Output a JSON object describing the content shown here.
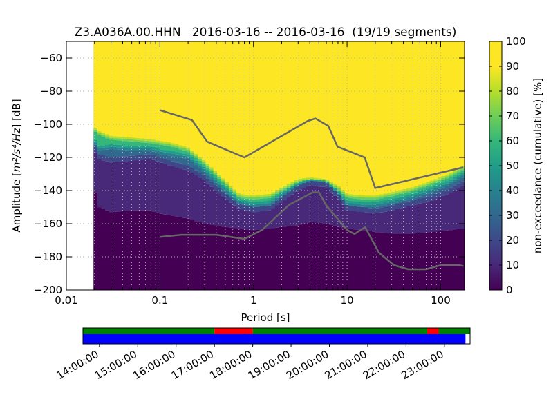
{
  "chart_data": {
    "type": "heatmap",
    "title": "Z3.A036A.00.HHN   2016-03-16 -- 2016-03-16  (19/19 segments)",
    "xlabel": "Period [s]",
    "ylabel_prefix": "Amplitude [",
    "ylabel_units": "m²/s⁴/Hz",
    "ylabel_suffix": "] [dB]",
    "x_scale": "log",
    "xlim": [
      0.01,
      180
    ],
    "ylim": [
      -200,
      -50
    ],
    "x_tick_labels": [
      "0.01",
      "0.1",
      "1",
      "10",
      "100"
    ],
    "x_tick_values": [
      0.01,
      0.1,
      1,
      10,
      100
    ],
    "y_tick_values": [
      -60,
      -80,
      -100,
      -120,
      -140,
      -160,
      -180,
      -200
    ],
    "grid": true,
    "colorbar": {
      "label": "non-exceedance (cumulative) [%]",
      "ticks": [
        0,
        10,
        20,
        30,
        40,
        50,
        60,
        70,
        80,
        90,
        100
      ],
      "range": [
        0,
        100
      ]
    },
    "data_start_period": 0.0195,
    "bands": {
      "period": [
        0.0195,
        0.022,
        0.03,
        0.05,
        0.08,
        0.1,
        0.13,
        0.2,
        0.3,
        0.5,
        0.7,
        1,
        1.5,
        2,
        3,
        4,
        6,
        8,
        10,
        15,
        20,
        30,
        50,
        80,
        120,
        175
      ],
      "p90": [
        -101,
        -104,
        -107,
        -108,
        -109,
        -110,
        -111,
        -114,
        -122,
        -134,
        -142,
        -143,
        -142,
        -138,
        -133,
        -132,
        -133,
        -137,
        -142,
        -143,
        -143,
        -141,
        -138,
        -134,
        -130,
        -125
      ],
      "p60": [
        -107,
        -113,
        -112,
        -113,
        -113,
        -115,
        -116,
        -118,
        -126,
        -138,
        -145,
        -147,
        -146,
        -141,
        -135,
        -133,
        -134,
        -140,
        -146,
        -147,
        -147,
        -145,
        -142,
        -138,
        -134,
        -129
      ],
      "p25": [
        -112,
        -119,
        -121,
        -120,
        -119,
        -121,
        -123,
        -126,
        -132,
        -143,
        -149,
        -151,
        -150,
        -145,
        -138,
        -135,
        -136,
        -143,
        -150,
        -151,
        -152,
        -150,
        -147,
        -144,
        -140,
        -135
      ],
      "p10": [
        -135,
        -150,
        -153,
        -152,
        -152,
        -154,
        -155,
        -157,
        -160,
        -162,
        -163,
        -164,
        -163,
        -162,
        -161,
        -159,
        -160,
        -162,
        -163,
        -164,
        -165,
        -166,
        -166,
        -165,
        -164,
        -163
      ]
    },
    "nhnm": {
      "x": [
        0.1,
        0.22,
        0.32,
        0.8,
        3.8,
        4.6,
        6.3,
        7.9,
        15.4,
        20,
        175
      ],
      "y": [
        -91.5,
        -97.4,
        -110.5,
        -120,
        -98,
        -96.5,
        -101,
        -113.5,
        -120,
        -138.5,
        -126
      ]
    },
    "nlnm": {
      "x": [
        0.1,
        0.17,
        0.4,
        0.8,
        1.24,
        2.4,
        4.3,
        5,
        6,
        10,
        12,
        15.6,
        21.9,
        31.6,
        45,
        70,
        101,
        154,
        175
      ],
      "y": [
        -168,
        -166.7,
        -166.7,
        -169.2,
        -163.7,
        -148.6,
        -141.1,
        -141.1,
        -149,
        -163.8,
        -166.2,
        -162.1,
        -177.5,
        -185,
        -187.5,
        -187.5,
        -185,
        -185,
        -185.5
      ]
    },
    "timeline": {
      "tick_labels": [
        "14:00:00",
        "15:00:00",
        "16:00:00",
        "17:00:00",
        "18:00:00",
        "19:00:00",
        "20:00:00",
        "21:00:00",
        "22:00:00",
        "23:00:00"
      ],
      "start_hour": 13.57,
      "end_hour": 23.67,
      "top_segments": [
        {
          "start": 13.57,
          "end": 17.0,
          "color": "#008000"
        },
        {
          "start": 17.0,
          "end": 18.0,
          "color": "#ff0000"
        },
        {
          "start": 18.0,
          "end": 22.55,
          "color": "#008000"
        },
        {
          "start": 22.55,
          "end": 22.85,
          "color": "#ff0000"
        },
        {
          "start": 22.85,
          "end": 23.67,
          "color": "#008000"
        }
      ],
      "bottom_segments": [
        {
          "start": 13.57,
          "end": 23.55,
          "color": "#0000ff"
        }
      ]
    }
  }
}
